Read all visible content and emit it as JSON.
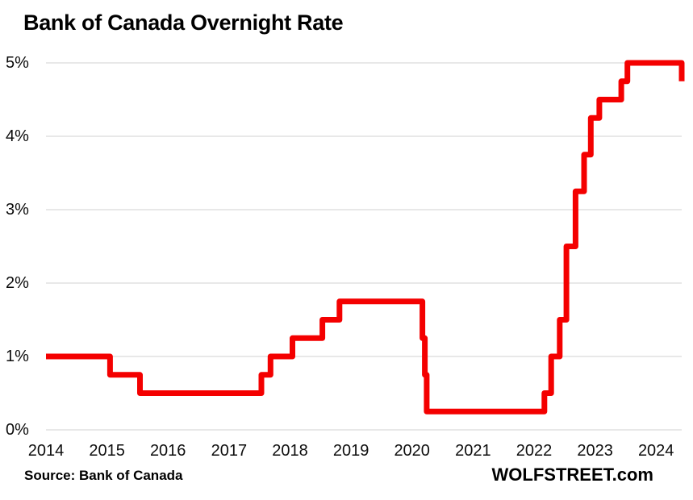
{
  "page": {
    "source_note": "Source: Bank of Canada",
    "branding": "WOLFSTREET.com"
  },
  "chart_data": {
    "type": "line",
    "subtype": "step-after",
    "title": "Bank of Canada Overnight Rate",
    "xlabel": "",
    "ylabel": "",
    "y_unit": "percent",
    "x_unit": "decimal year",
    "xlim": [
      2014,
      2024.42
    ],
    "ylim": [
      0,
      5
    ],
    "x_tick_values": [
      2014,
      2015,
      2016,
      2017,
      2018,
      2019,
      2020,
      2021,
      2022,
      2023,
      2024
    ],
    "x_tick_labels": [
      "2014",
      "2015",
      "2016",
      "2017",
      "2018",
      "2019",
      "2020",
      "2021",
      "2022",
      "2023",
      "2024"
    ],
    "y_tick_values": [
      0,
      1,
      2,
      3,
      4,
      5
    ],
    "y_tick_labels": [
      "0%",
      "1%",
      "2%",
      "3%",
      "4%",
      "5%"
    ],
    "grid": "horizontal",
    "legend": "none",
    "colors": {
      "line": "#F40000",
      "grid": "#D9D9D9",
      "text": "#0D0D0D",
      "background": "#FFFFFF"
    },
    "series": [
      {
        "name": "Bank of Canada overnight rate (%)",
        "points": [
          [
            2014.0,
            1.0
          ],
          [
            2015.05,
            0.75
          ],
          [
            2015.54,
            0.5
          ],
          [
            2017.53,
            0.75
          ],
          [
            2017.68,
            1.0
          ],
          [
            2018.04,
            1.25
          ],
          [
            2018.53,
            1.5
          ],
          [
            2018.81,
            1.75
          ],
          [
            2020.17,
            1.25
          ],
          [
            2020.21,
            0.75
          ],
          [
            2020.24,
            0.25
          ],
          [
            2022.17,
            0.5
          ],
          [
            2022.28,
            1.0
          ],
          [
            2022.42,
            1.5
          ],
          [
            2022.53,
            2.5
          ],
          [
            2022.68,
            3.25
          ],
          [
            2022.82,
            3.75
          ],
          [
            2022.93,
            4.25
          ],
          [
            2023.07,
            4.5
          ],
          [
            2023.43,
            4.75
          ],
          [
            2023.53,
            5.0
          ],
          [
            2024.42,
            4.75
          ]
        ]
      }
    ]
  }
}
